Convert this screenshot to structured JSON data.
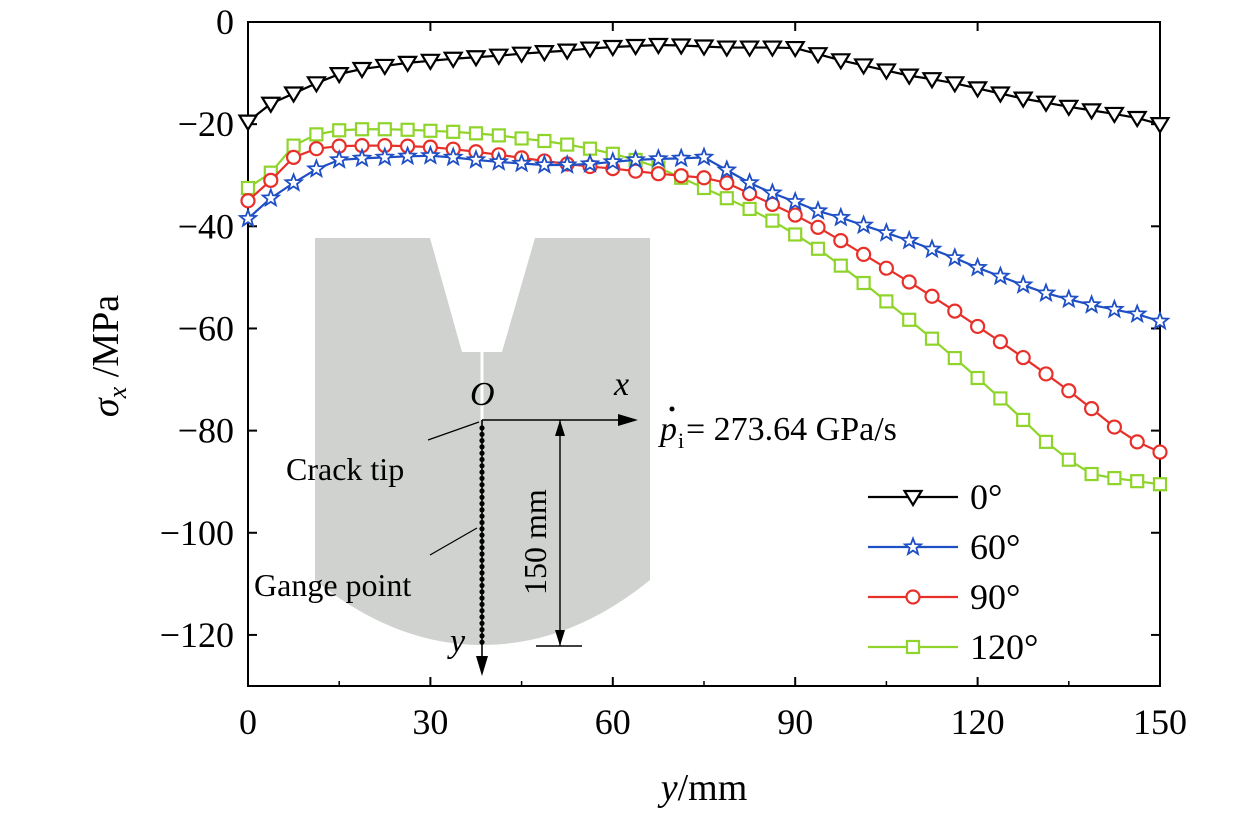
{
  "chart_data": {
    "type": "line",
    "xlabel_var": "y",
    "xlabel_unit": "/mm",
    "ylabel_var": "σ",
    "ylabel_sub": "x",
    "ylabel_unit": " /MPa",
    "xlim": [
      0,
      150
    ],
    "ylim": [
      -130,
      0
    ],
    "xticks": [
      0,
      30,
      60,
      90,
      120,
      150
    ],
    "xtick_labels": [
      "0",
      "30",
      "60",
      "90",
      "120",
      "150"
    ],
    "yticks": [
      0,
      -20,
      -40,
      -60,
      -80,
      -100,
      -120
    ],
    "ytick_labels": [
      "0",
      "−20",
      "−40",
      "−60",
      "−80",
      "−100",
      "−120"
    ],
    "grid": false,
    "legend_position": "bottom-right",
    "x": [
      0,
      3.75,
      7.5,
      11.25,
      15,
      18.75,
      22.5,
      26.25,
      30,
      33.75,
      37.5,
      41.25,
      45,
      48.75,
      52.5,
      56.25,
      60,
      63.75,
      67.5,
      71.25,
      75,
      78.75,
      82.5,
      86.25,
      90,
      93.75,
      97.5,
      101.25,
      105,
      108.75,
      112.5,
      116.25,
      120,
      123.75,
      127.5,
      131.25,
      135,
      138.75,
      142.5,
      146.25,
      150
    ],
    "series": [
      {
        "name": "0°",
        "color": "#000000",
        "marker": "triangle-down",
        "values": [
          -19.5,
          -16,
          -14,
          -12,
          -10.2,
          -9.2,
          -8.6,
          -8,
          -7.6,
          -7.2,
          -6.9,
          -6.6,
          -6.2,
          -5.9,
          -5.6,
          -5.2,
          -4.9,
          -4.7,
          -4.5,
          -4.6,
          -4.8,
          -5,
          -5,
          -5,
          -5.1,
          -6.3,
          -7.5,
          -8.5,
          -9.5,
          -10.5,
          -11.2,
          -12,
          -13,
          -14,
          -15,
          -15.8,
          -16.6,
          -17.3,
          -18,
          -18.8,
          -20
        ]
      },
      {
        "name": "60°",
        "color": "#1f4fc4",
        "marker": "star",
        "values": [
          -38.5,
          -34.5,
          -31.5,
          -28.8,
          -27,
          -26.7,
          -26.5,
          -26.3,
          -26.2,
          -26.5,
          -27,
          -27.4,
          -27.7,
          -28,
          -28,
          -27.8,
          -27.4,
          -27,
          -26.8,
          -26.7,
          -26.5,
          -29,
          -31.5,
          -33.5,
          -35.2,
          -37,
          -38.3,
          -39.8,
          -41.3,
          -42.8,
          -44.5,
          -46.2,
          -48.1,
          -49.8,
          -51.5,
          -53.1,
          -54.3,
          -55.4,
          -56.3,
          -57.2,
          -58.6
        ]
      },
      {
        "name": "90°",
        "color": "#e8302a",
        "marker": "circle",
        "values": [
          -35,
          -31,
          -26.5,
          -24.8,
          -24.3,
          -24.2,
          -24.2,
          -24.3,
          -24.5,
          -24.9,
          -25.4,
          -26,
          -26.6,
          -27.2,
          -27.8,
          -28.3,
          -28.7,
          -29.2,
          -29.7,
          -30.1,
          -30.5,
          -31.5,
          -33.6,
          -35.7,
          -37.8,
          -40.2,
          -42.8,
          -45.5,
          -48.2,
          -50.9,
          -53.7,
          -56.6,
          -59.6,
          -62.6,
          -65.7,
          -68.9,
          -72.2,
          -75.7,
          -79.3,
          -82.2,
          -84.2
        ]
      },
      {
        "name": "120°",
        "color": "#8fd42a",
        "marker": "square",
        "values": [
          -32.5,
          -29.5,
          -24.2,
          -22,
          -21.2,
          -21,
          -21,
          -21.1,
          -21.3,
          -21.5,
          -21.8,
          -22.2,
          -22.8,
          -23.3,
          -24,
          -24.8,
          -25.8,
          -27,
          -28.5,
          -30.5,
          -32.5,
          -34.5,
          -36.6,
          -38.9,
          -41.6,
          -44.4,
          -47.7,
          -51.1,
          -54.7,
          -58.3,
          -62,
          -65.8,
          -69.7,
          -73.7,
          -77.9,
          -82.2,
          -85.7,
          -88.5,
          -89.3,
          -89.9,
          -90.5
        ]
      }
    ],
    "annotations": {
      "origin": "O",
      "x_axis": "x",
      "y_axis": "y",
      "crack_tip": "Crack tip",
      "gauge_point": "Gange point",
      "dimension": "150 mm",
      "rate_var": "p",
      "rate_sub": "i",
      "rate_value": "= 273.64 GPa/s"
    }
  },
  "colors": {
    "specimen_fill": "#cfd2cf",
    "axis": "#000000"
  }
}
